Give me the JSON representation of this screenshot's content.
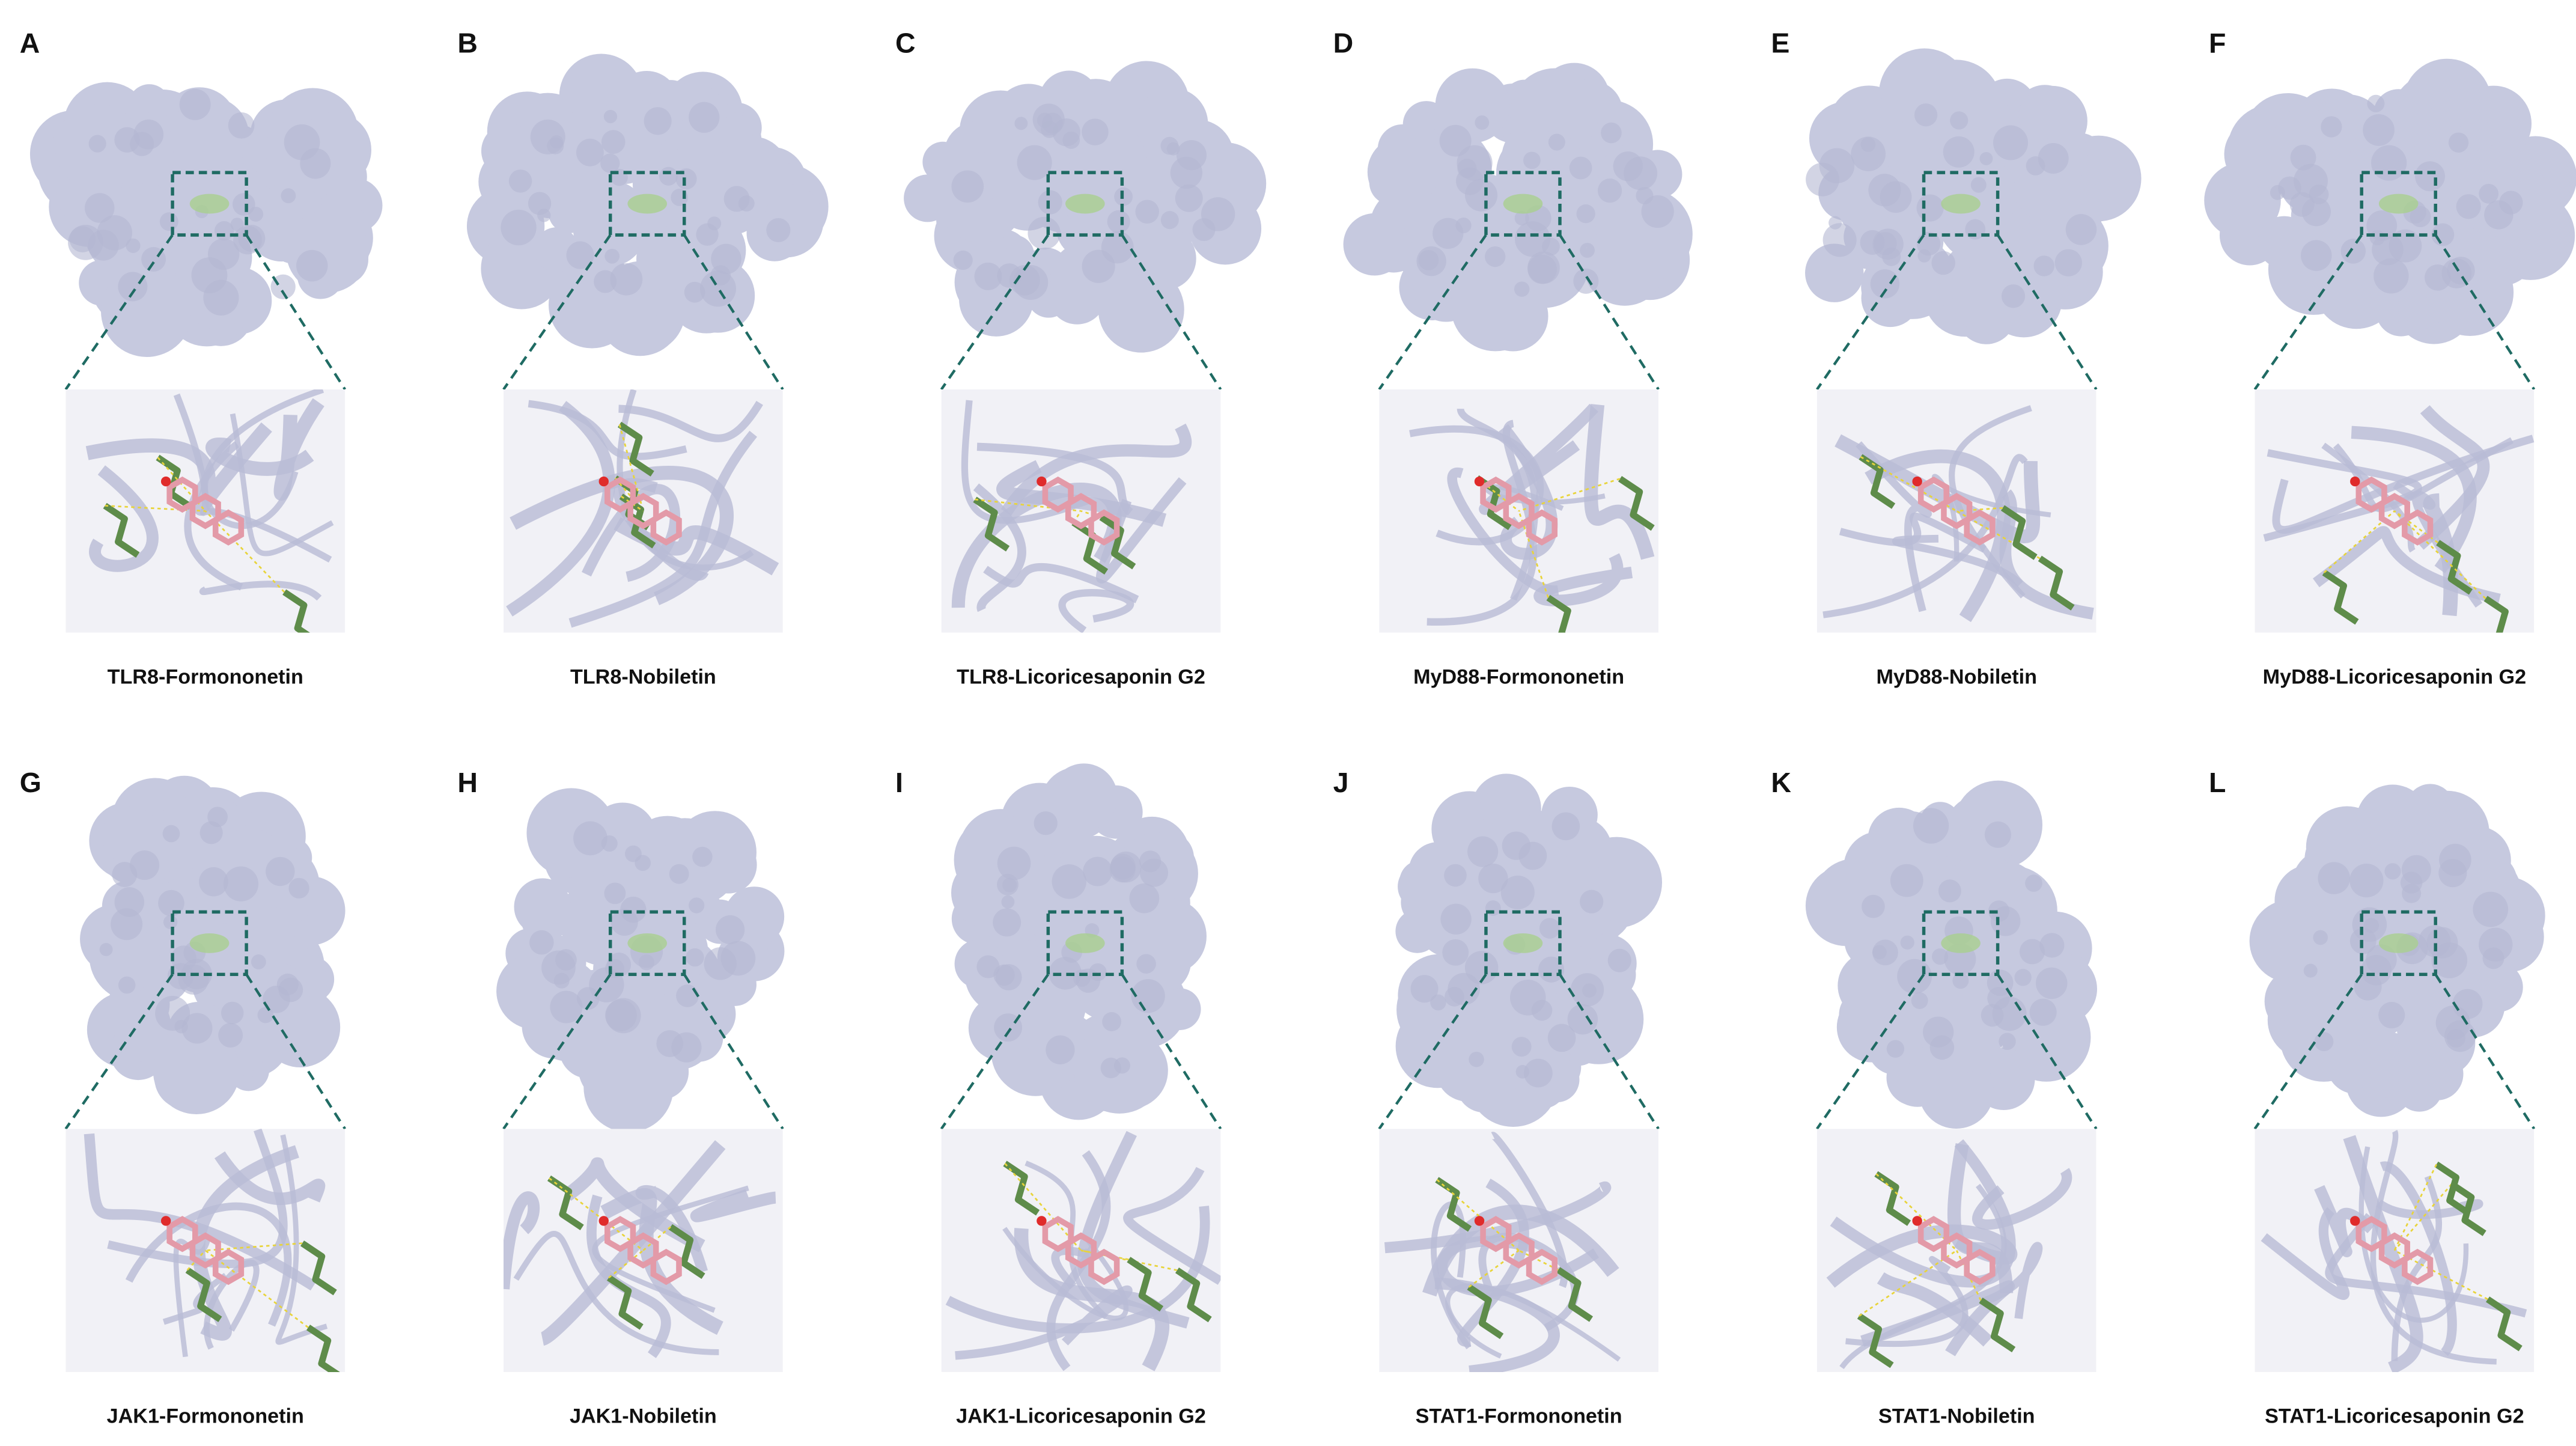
{
  "panels": [
    {
      "letter": "A",
      "caption": "TLR8-Formononetin"
    },
    {
      "letter": "B",
      "caption": "TLR8-Nobiletin"
    },
    {
      "letter": "C",
      "caption": "TLR8-Licoricesaponin G2"
    },
    {
      "letter": "D",
      "caption": "MyD88-Formononetin"
    },
    {
      "letter": "E",
      "caption": "MyD88-Nobiletin"
    },
    {
      "letter": "F",
      "caption": "MyD88-Licoricesaponin G2"
    },
    {
      "letter": "G",
      "caption": "JAK1-Formononetin"
    },
    {
      "letter": "H",
      "caption": "JAK1-Nobiletin"
    },
    {
      "letter": "I",
      "caption": "JAK1-Licoricesaponin G2"
    },
    {
      "letter": "J",
      "caption": "STAT1-Formononetin"
    },
    {
      "letter": "K",
      "caption": "STAT1-Nobiletin"
    },
    {
      "letter": "L",
      "caption": "STAT1-Licoricesaponin G2"
    }
  ]
}
